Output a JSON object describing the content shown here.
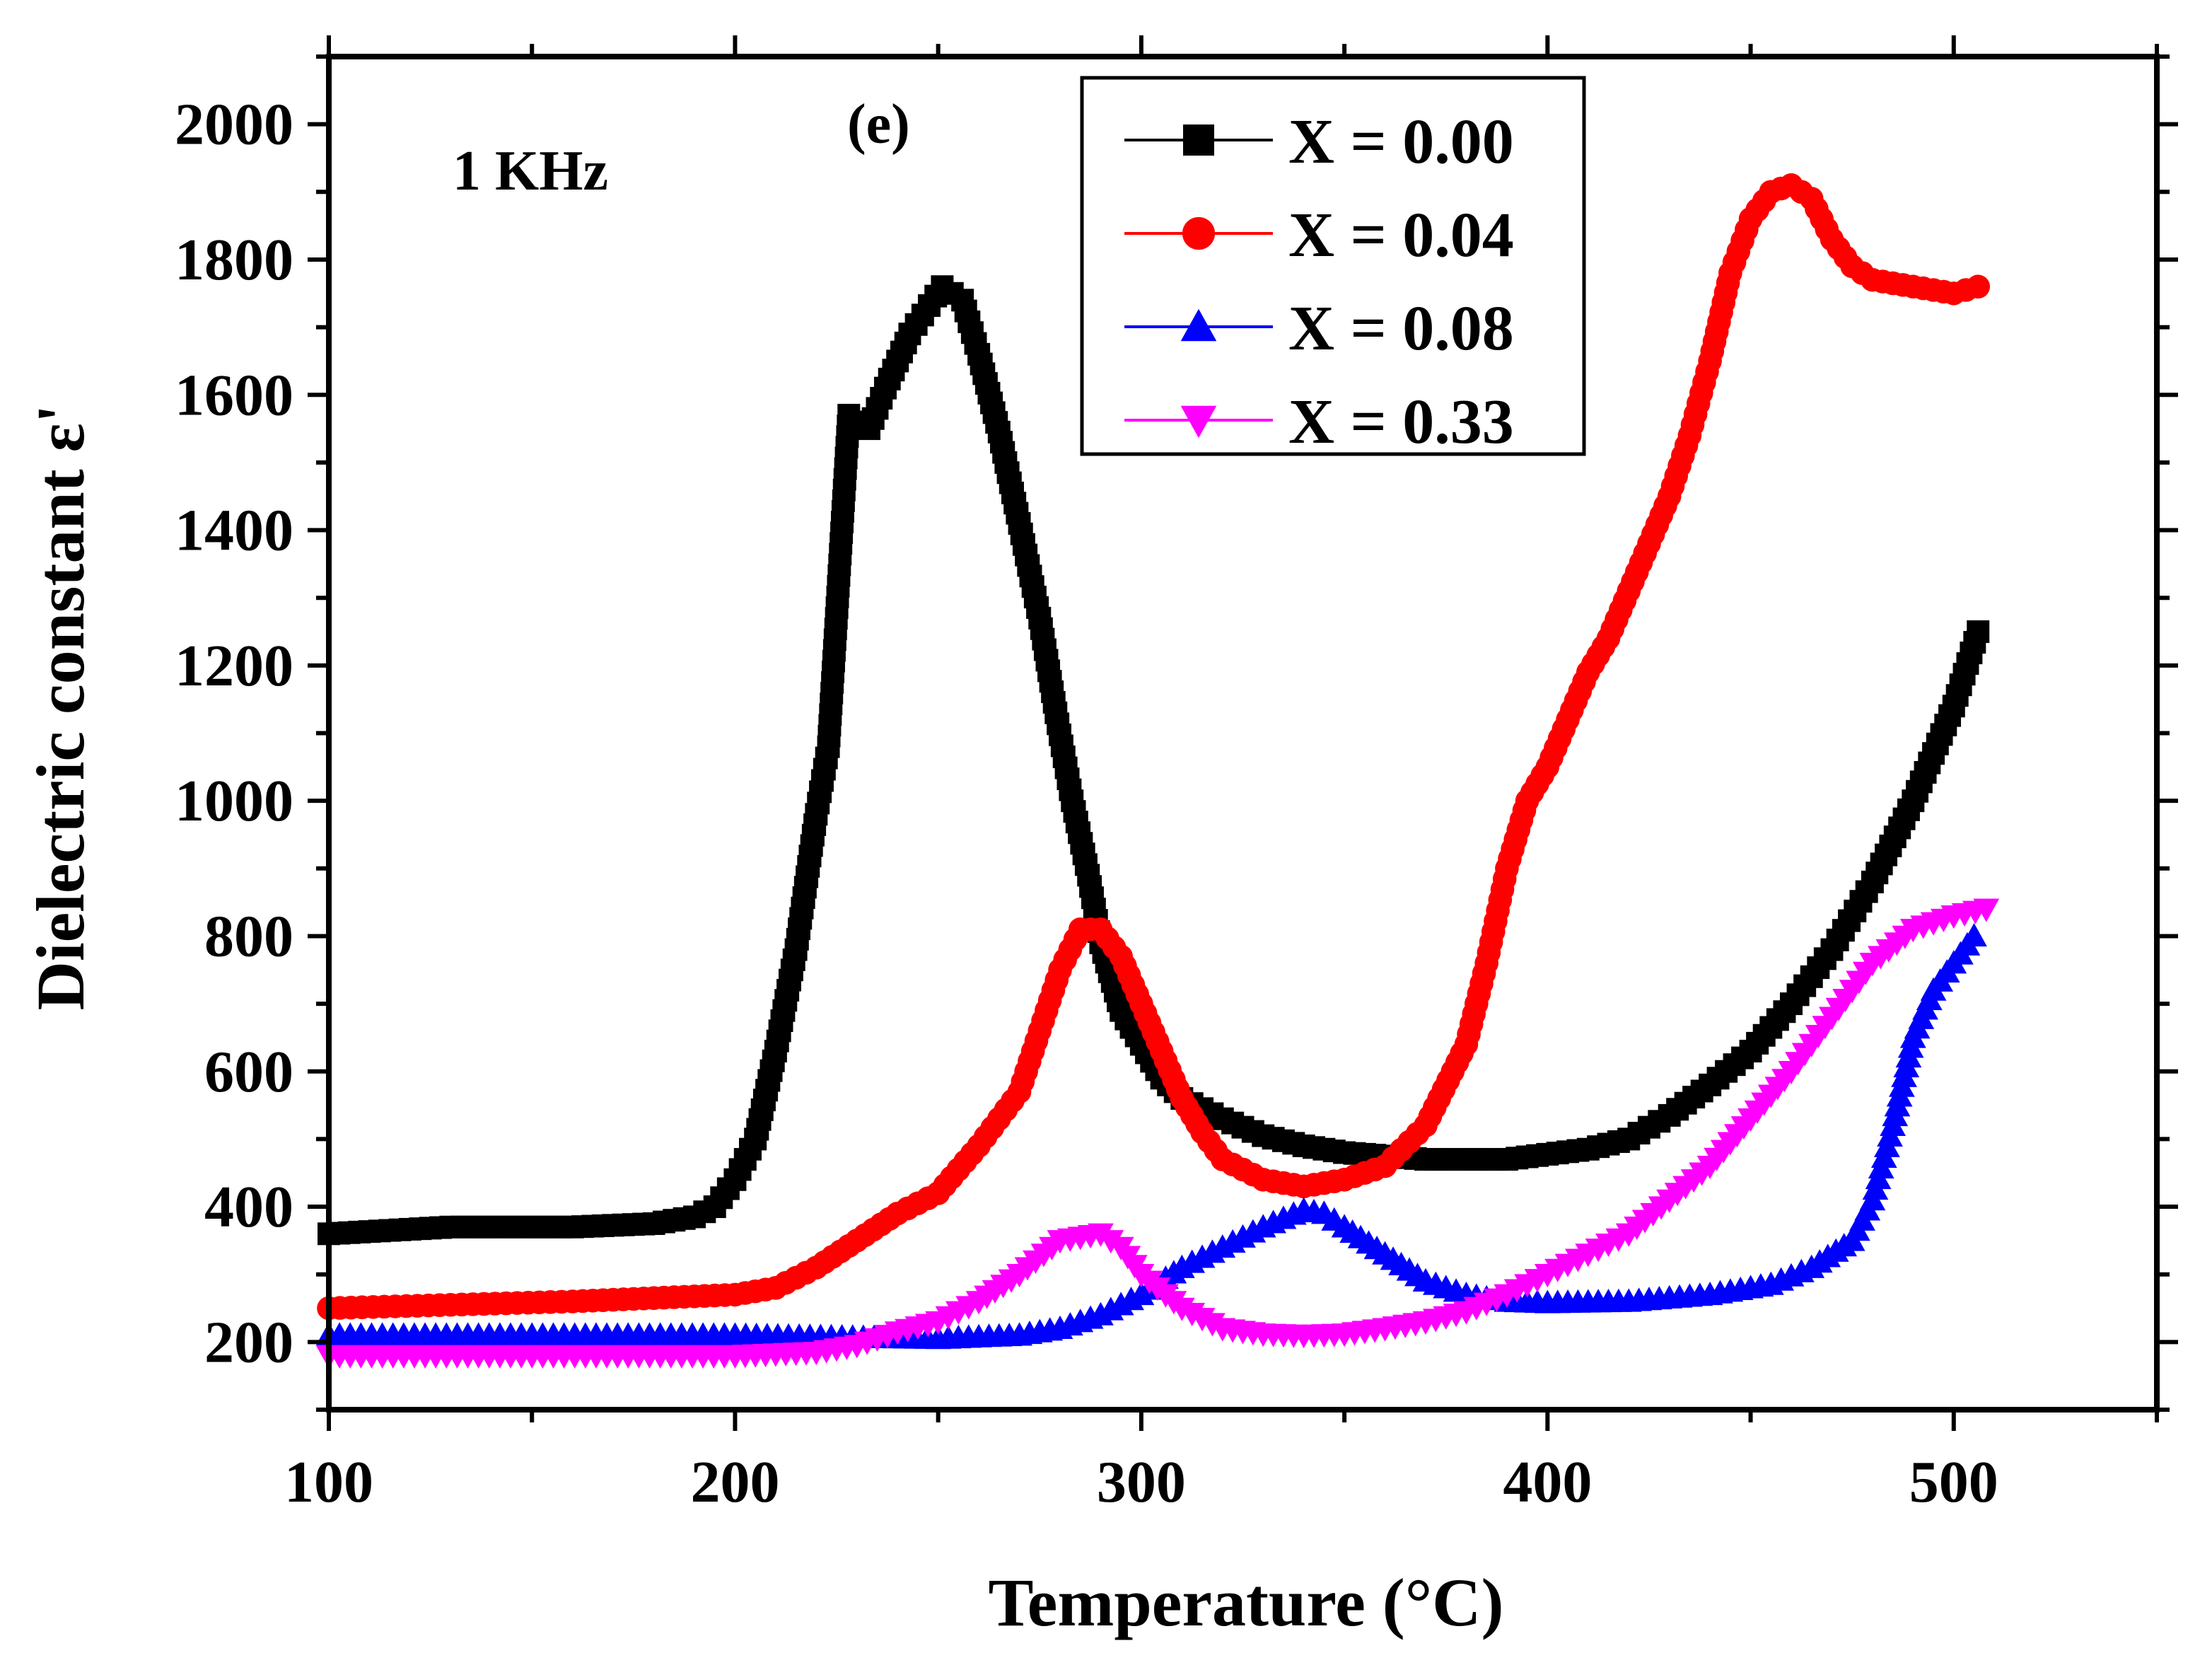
{
  "chart_data": {
    "type": "line",
    "title": "",
    "xlabel": "Temperature (°C)",
    "ylabel": "Dielectric constant ε'",
    "xlim": [
      100,
      550
    ],
    "ylim": [
      100,
      2100
    ],
    "xticks": [
      100,
      200,
      300,
      400,
      500
    ],
    "yticks": [
      200,
      400,
      600,
      800,
      1000,
      1200,
      1400,
      1600,
      1800,
      2000
    ],
    "annotations": {
      "frequency": "1 KHz",
      "panel": "(e)"
    },
    "legend_position": "top-center",
    "grid": false,
    "series": [
      {
        "name": "X = 0.00",
        "color": "#000000",
        "marker": "square",
        "points": [
          [
            100,
            360
          ],
          [
            130,
            370
          ],
          [
            160,
            370
          ],
          [
            180,
            375
          ],
          [
            190,
            385
          ],
          [
            195,
            400
          ],
          [
            200,
            440
          ],
          [
            205,
            500
          ],
          [
            210,
            630
          ],
          [
            215,
            780
          ],
          [
            220,
            980
          ],
          [
            223,
            1080
          ],
          [
            228,
            1570
          ],
          [
            233,
            1550
          ],
          [
            237,
            1610
          ],
          [
            243,
            1690
          ],
          [
            251,
            1760
          ],
          [
            256,
            1740
          ],
          [
            260,
            1660
          ],
          [
            265,
            1545
          ],
          [
            270,
            1410
          ],
          [
            275,
            1270
          ],
          [
            279,
            1130
          ],
          [
            283,
            1000
          ],
          [
            287,
            890
          ],
          [
            290,
            790
          ],
          [
            295,
            690
          ],
          [
            300,
            640
          ],
          [
            305,
            590
          ],
          [
            310,
            560
          ],
          [
            320,
            530
          ],
          [
            330,
            505
          ],
          [
            340,
            490
          ],
          [
            350,
            480
          ],
          [
            370,
            470
          ],
          [
            390,
            470
          ],
          [
            410,
            485
          ],
          [
            420,
            500
          ],
          [
            430,
            535
          ],
          [
            440,
            580
          ],
          [
            450,
            630
          ],
          [
            460,
            700
          ],
          [
            470,
            780
          ],
          [
            480,
            880
          ],
          [
            490,
            1000
          ],
          [
            500,
            1140
          ],
          [
            506,
            1250
          ]
        ]
      },
      {
        "name": "X = 0.04",
        "color": "#ff0000",
        "marker": "circle",
        "points": [
          [
            100,
            250
          ],
          [
            130,
            255
          ],
          [
            160,
            260
          ],
          [
            180,
            265
          ],
          [
            200,
            270
          ],
          [
            210,
            280
          ],
          [
            220,
            310
          ],
          [
            230,
            350
          ],
          [
            240,
            390
          ],
          [
            250,
            420
          ],
          [
            260,
            490
          ],
          [
            270,
            570
          ],
          [
            275,
            660
          ],
          [
            280,
            750
          ],
          [
            285,
            810
          ],
          [
            290,
            810
          ],
          [
            295,
            770
          ],
          [
            300,
            700
          ],
          [
            305,
            630
          ],
          [
            310,
            560
          ],
          [
            315,
            510
          ],
          [
            320,
            470
          ],
          [
            330,
            440
          ],
          [
            340,
            430
          ],
          [
            350,
            440
          ],
          [
            360,
            460
          ],
          [
            370,
            520
          ],
          [
            380,
            640
          ],
          [
            385,
            760
          ],
          [
            390,
            900
          ],
          [
            395,
            1000
          ],
          [
            400,
            1050
          ],
          [
            405,
            1120
          ],
          [
            410,
            1190
          ],
          [
            415,
            1240
          ],
          [
            420,
            1310
          ],
          [
            425,
            1380
          ],
          [
            430,
            1450
          ],
          [
            435,
            1540
          ],
          [
            440,
            1650
          ],
          [
            445,
            1780
          ],
          [
            450,
            1860
          ],
          [
            455,
            1900
          ],
          [
            460,
            1910
          ],
          [
            465,
            1890
          ],
          [
            470,
            1830
          ],
          [
            475,
            1790
          ],
          [
            480,
            1770
          ],
          [
            490,
            1760
          ],
          [
            500,
            1750
          ],
          [
            506,
            1760
          ]
        ]
      },
      {
        "name": "X = 0.08",
        "color": "#0000ff",
        "marker": "triangle-up",
        "points": [
          [
            100,
            210
          ],
          [
            150,
            210
          ],
          [
            200,
            210
          ],
          [
            250,
            205
          ],
          [
            270,
            210
          ],
          [
            280,
            220
          ],
          [
            290,
            240
          ],
          [
            300,
            270
          ],
          [
            310,
            310
          ],
          [
            320,
            340
          ],
          [
            330,
            370
          ],
          [
            340,
            395
          ],
          [
            345,
            390
          ],
          [
            350,
            370
          ],
          [
            360,
            330
          ],
          [
            370,
            290
          ],
          [
            380,
            270
          ],
          [
            390,
            260
          ],
          [
            400,
            258
          ],
          [
            420,
            260
          ],
          [
            440,
            270
          ],
          [
            455,
            285
          ],
          [
            465,
            310
          ],
          [
            475,
            350
          ],
          [
            480,
            410
          ],
          [
            485,
            520
          ],
          [
            490,
            650
          ],
          [
            495,
            720
          ],
          [
            500,
            760
          ],
          [
            505,
            800
          ]
        ]
      },
      {
        "name": "X = 0.33",
        "color": "#ff00ff",
        "marker": "triangle-down",
        "points": [
          [
            100,
            180
          ],
          [
            150,
            180
          ],
          [
            200,
            180
          ],
          [
            220,
            185
          ],
          [
            230,
            195
          ],
          [
            240,
            215
          ],
          [
            250,
            230
          ],
          [
            260,
            260
          ],
          [
            270,
            300
          ],
          [
            280,
            350
          ],
          [
            290,
            360
          ],
          [
            295,
            340
          ],
          [
            300,
            300
          ],
          [
            310,
            250
          ],
          [
            320,
            220
          ],
          [
            330,
            212
          ],
          [
            340,
            210
          ],
          [
            350,
            212
          ],
          [
            360,
            220
          ],
          [
            370,
            230
          ],
          [
            380,
            245
          ],
          [
            390,
            270
          ],
          [
            400,
            300
          ],
          [
            410,
            330
          ],
          [
            420,
            360
          ],
          [
            430,
            410
          ],
          [
            440,
            460
          ],
          [
            450,
            530
          ],
          [
            460,
            600
          ],
          [
            470,
            680
          ],
          [
            480,
            760
          ],
          [
            490,
            810
          ],
          [
            500,
            830
          ],
          [
            508,
            840
          ]
        ]
      }
    ]
  }
}
